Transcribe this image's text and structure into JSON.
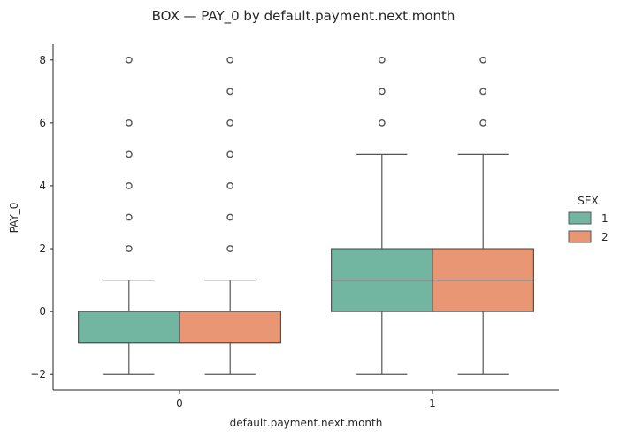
{
  "chart_data": {
    "type": "box",
    "title": "BOX — PAY_0 by default.payment.next.month",
    "xlabel": "default.payment.next.month",
    "ylabel": "PAY_0",
    "categories": [
      "0",
      "1"
    ],
    "ylim": [
      -2.5,
      8.5
    ],
    "yticks": [
      -2,
      0,
      2,
      4,
      6,
      8
    ],
    "ytick_labels": [
      "−2",
      "0",
      "2",
      "4",
      "6",
      "8"
    ],
    "legend": {
      "title": "SEX",
      "placement": "right",
      "entries": [
        "1",
        "2"
      ]
    },
    "colors": {
      "1": "#72b6a1",
      "2": "#e99675"
    },
    "edge_color": "#555555",
    "series": [
      {
        "name": "1",
        "boxes": [
          {
            "category": "0",
            "whisker_low": -2,
            "q1": -1,
            "median": -1,
            "q3": 0,
            "whisker_high": 1,
            "outliers": [
              2,
              3,
              4,
              5,
              6,
              8
            ]
          },
          {
            "category": "1",
            "whisker_low": -2,
            "q1": 0,
            "median": 1,
            "q3": 2,
            "whisker_high": 5,
            "outliers": [
              6,
              7,
              8
            ]
          }
        ]
      },
      {
        "name": "2",
        "boxes": [
          {
            "category": "0",
            "whisker_low": -2,
            "q1": -1,
            "median": -1,
            "q3": 0,
            "whisker_high": 1,
            "outliers": [
              2,
              3,
              4,
              5,
              6,
              7,
              8
            ]
          },
          {
            "category": "1",
            "whisker_low": -2,
            "q1": 0,
            "median": 1,
            "q3": 2,
            "whisker_high": 5,
            "outliers": [
              6,
              7,
              8
            ]
          }
        ]
      }
    ]
  }
}
